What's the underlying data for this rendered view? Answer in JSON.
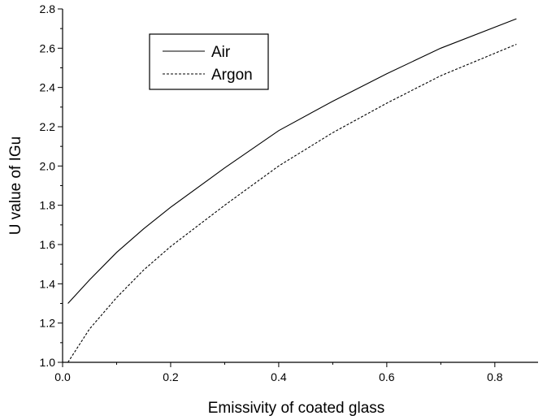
{
  "chart_data": {
    "type": "line",
    "title": "",
    "xlabel": "Emissivity of coated glass",
    "ylabel": "U value of IGu",
    "xlim": [
      0.0,
      0.88
    ],
    "ylim": [
      1.0,
      2.8
    ],
    "x_ticks": [
      "0.0",
      "0.2",
      "0.4",
      "0.6",
      "0.8"
    ],
    "y_ticks": [
      "1.0",
      "1.2",
      "1.4",
      "1.6",
      "1.8",
      "2.0",
      "2.2",
      "2.4",
      "2.6",
      "2.8"
    ],
    "grid": false,
    "legend_position": "top-left",
    "series": [
      {
        "name": "Air",
        "style": "solid",
        "color": "#000000",
        "x": [
          0.01,
          0.05,
          0.1,
          0.15,
          0.2,
          0.3,
          0.4,
          0.5,
          0.6,
          0.7,
          0.84
        ],
        "y": [
          1.3,
          1.42,
          1.56,
          1.68,
          1.79,
          1.99,
          2.18,
          2.33,
          2.47,
          2.6,
          2.75
        ]
      },
      {
        "name": "Argon",
        "style": "dashed",
        "color": "#000000",
        "x": [
          0.01,
          0.05,
          0.1,
          0.15,
          0.2,
          0.3,
          0.4,
          0.5,
          0.6,
          0.7,
          0.84
        ],
        "y": [
          1.0,
          1.17,
          1.33,
          1.47,
          1.59,
          1.8,
          2.0,
          2.17,
          2.32,
          2.46,
          2.62
        ]
      }
    ]
  }
}
